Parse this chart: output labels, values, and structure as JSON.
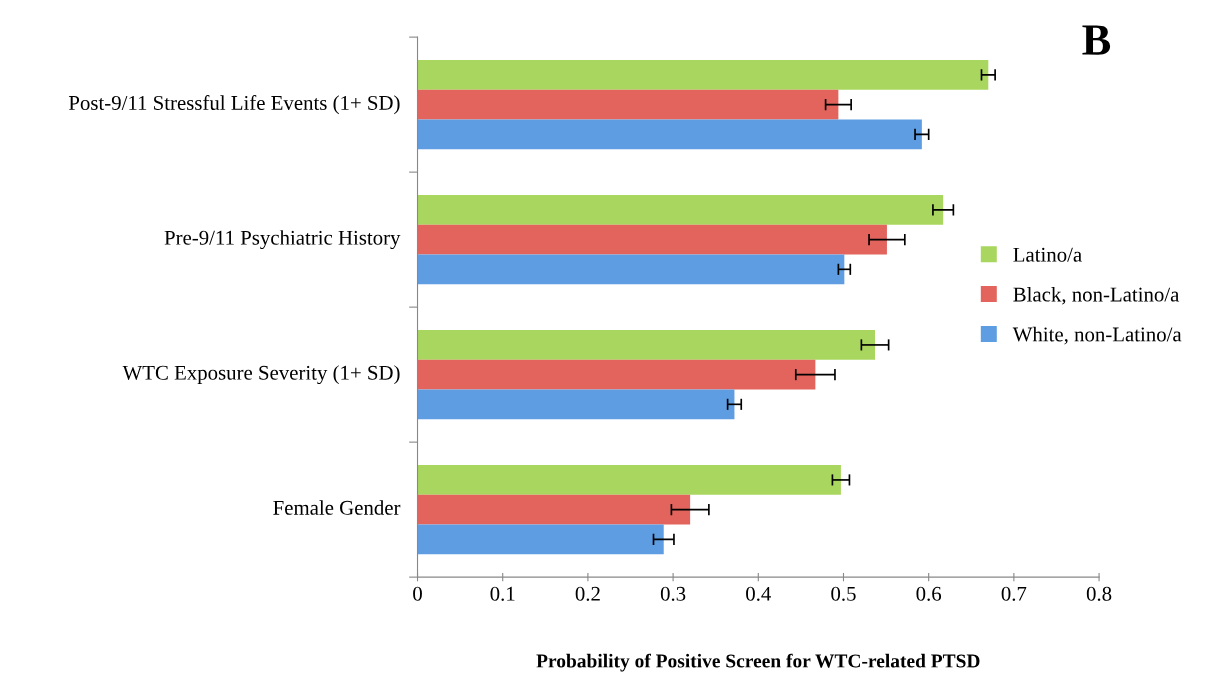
{
  "chart_data": {
    "type": "bar",
    "orientation": "horizontal",
    "title": null,
    "xlabel": "Probability of Positive Screen for WTC-related PTSD",
    "categories": [
      "Post-9/11 Stressful Life Events (1+ SD)",
      "Pre-9/11 Psychiatric History",
      "WTC Exposure Severity (1+ SD)",
      "Female Gender"
    ],
    "series": [
      {
        "name": "Latino/a",
        "color": "#a9d65f",
        "values": [
          0.67,
          0.617,
          0.537,
          0.497
        ],
        "errors": [
          0.008,
          0.012,
          0.016,
          0.01
        ]
      },
      {
        "name": "Black, non-Latino/a",
        "color": "#e2645c",
        "values": [
          0.494,
          0.551,
          0.467,
          0.32
        ],
        "errors": [
          0.015,
          0.021,
          0.023,
          0.022
        ]
      },
      {
        "name": "White, non-Latino/a",
        "color": "#5e9de2",
        "values": [
          0.592,
          0.501,
          0.372,
          0.289
        ],
        "errors": [
          0.008,
          0.007,
          0.008,
          0.012
        ]
      }
    ],
    "xlim": [
      0,
      0.8
    ],
    "xticks": [
      0,
      0.1,
      0.2,
      0.3,
      0.4,
      0.5,
      0.6,
      0.7,
      0.8
    ],
    "grid": false,
    "legend": "right",
    "annotations": [
      "B"
    ]
  }
}
